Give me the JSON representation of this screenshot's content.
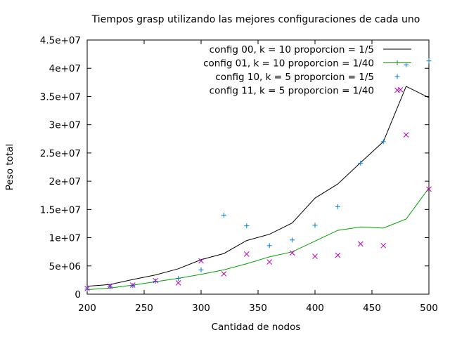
{
  "chart_data": {
    "type": "line",
    "title": "Tiempos grasp utilizando las mejores configuraciones de cada uno",
    "xlabel": "Cantidad de nodos",
    "ylabel": "Peso total",
    "xlim": [
      200,
      500
    ],
    "ylim": [
      0,
      45000000
    ],
    "x_ticks": [
      200,
      250,
      300,
      350,
      400,
      450,
      500
    ],
    "x_tick_labels": [
      "200",
      "250",
      "300",
      "350",
      "400",
      "450",
      "500"
    ],
    "y_ticks": [
      0,
      5000000,
      10000000,
      15000000,
      20000000,
      25000000,
      30000000,
      35000000,
      40000000,
      45000000
    ],
    "y_tick_labels": [
      "0",
      "5e+06",
      "1e+07",
      "1.5e+07",
      "2e+07",
      "2.5e+07",
      "3e+07",
      "3.5e+07",
      "4e+07",
      "4.5e+07"
    ],
    "grid": false,
    "legend_position": "top-right",
    "series": [
      {
        "name": "config 00, k = 10 proporcion = 1/5",
        "style": "line",
        "color": "#000000",
        "x": [
          200,
          220,
          240,
          260,
          280,
          300,
          320,
          340,
          360,
          380,
          400,
          420,
          440,
          460,
          480,
          500
        ],
        "y": [
          1400000,
          1700000,
          2600000,
          3400000,
          4500000,
          6100000,
          7200000,
          9500000,
          10600000,
          12600000,
          17000000,
          19500000,
          23300000,
          27000000,
          36800000,
          34800000
        ]
      },
      {
        "name": "config 01, k = 10 proporcion = 1/40",
        "style": "line",
        "color": "#00a000",
        "x": [
          200,
          220,
          240,
          260,
          280,
          300,
          320,
          340,
          360,
          380,
          400,
          420,
          440,
          460,
          480,
          500
        ],
        "y": [
          800000,
          1100000,
          1600000,
          2200000,
          2800000,
          3500000,
          4300000,
          5400000,
          6600000,
          7500000,
          9400000,
          11300000,
          11900000,
          11700000,
          13300000,
          18800000
        ]
      },
      {
        "name": "config  10, k = 5 proporcion = 1/5",
        "style": "points",
        "marker": "+",
        "color": "#0080d0",
        "x": [
          200,
          220,
          240,
          260,
          280,
          300,
          320,
          340,
          360,
          380,
          400,
          420,
          440,
          460,
          480,
          500
        ],
        "y": [
          900000,
          1300000,
          1500000,
          2300000,
          2800000,
          4300000,
          14000000,
          12100000,
          8600000,
          9600000,
          12200000,
          15500000,
          23200000,
          27000000,
          40600000,
          41300000
        ]
      },
      {
        "name": "config 11, k = 5 proporcion = 1/40",
        "style": "points",
        "marker": "x",
        "color": "#c000c0",
        "x": [
          200,
          220,
          240,
          260,
          280,
          300,
          320,
          340,
          360,
          380,
          400,
          420,
          440,
          460,
          475,
          480,
          500
        ],
        "y": [
          1000000,
          1400000,
          1600000,
          2400000,
          2000000,
          5900000,
          3600000,
          7100000,
          5700000,
          7300000,
          6700000,
          6900000,
          8900000,
          8600000,
          36200000,
          28200000,
          18600000
        ]
      }
    ]
  }
}
